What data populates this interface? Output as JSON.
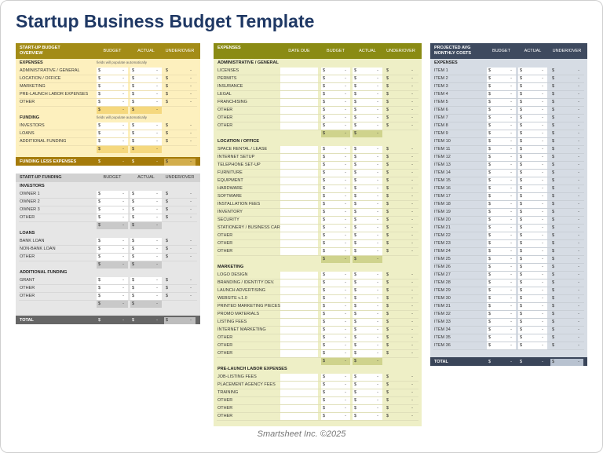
{
  "title": "Startup Business Budget Template",
  "footer": "Smartsheet Inc. ©2025",
  "currency_symbol": "$",
  "empty_value": "-",
  "overview": {
    "header": {
      "label": "START-UP BUDGET OVERVIEW",
      "columns": [
        "BUDGET",
        "ACTUAL",
        "UNDER/OVER"
      ]
    },
    "sections": [
      {
        "heading": "EXPENSES",
        "note": "fields will populate automatically",
        "rows": [
          "ADMINISTRATIVE / GENERAL",
          "LOCATION / OFFICE",
          "MARKETING",
          "PRE-LAUNCH LABOR EXPENSES",
          "OTHER"
        ]
      },
      {
        "heading": "FUNDING",
        "note": "fields will populate automatically",
        "rows": [
          "INVESTORS",
          "LOANS",
          "ADDITIONAL FUNDING"
        ]
      }
    ],
    "total_label": "FUNDING LESS EXPENSES"
  },
  "funding": {
    "header": {
      "label": "START-UP FUNDING",
      "columns": [
        "BUDGET",
        "ACTUAL",
        "UNDER/OVER"
      ]
    },
    "sections": [
      {
        "heading": "INVESTORS",
        "rows": [
          "OWNER 1",
          "OWNER 2",
          "OWNER 3",
          "OTHER"
        ]
      },
      {
        "heading": "LOANS",
        "rows": [
          "BANK LOAN",
          "NON-BANK LOAN",
          "OTHER"
        ]
      },
      {
        "heading": "ADDITIONAL FUNDING",
        "rows": [
          "GRANT",
          "OTHER",
          "OTHER"
        ]
      }
    ],
    "total_label": "TOTAL"
  },
  "expenses": {
    "header": {
      "label": "EXPENSES",
      "columns": [
        "DATE DUE",
        "BUDGET",
        "ACTUAL",
        "UNDER/OVER"
      ]
    },
    "sections": [
      {
        "heading": "ADMINISTRATIVE / GENERAL",
        "rows": [
          "LICENSES",
          "PERMITS",
          "INSURANCE",
          "LEGAL",
          "FRANCHISING",
          "OTHER",
          "OTHER",
          "OTHER"
        ]
      },
      {
        "heading": "LOCATION / OFFICE",
        "rows": [
          "SPACE RENTAL / LEASE",
          "INTERNET SETUP",
          "TELEPHONE SET-UP",
          "FURNITURE",
          "EQUIPMENT",
          "HARDWARE",
          "SOFTWARE",
          "INSTALLATION FEES",
          "INVENTORY",
          "SECURITY",
          "STATIONERY / BUSINESS CARDS",
          "OTHER",
          "OTHER",
          "OTHER"
        ]
      },
      {
        "heading": "MARKETING",
        "rows": [
          "LOGO DESIGN",
          "BRANDING / IDENTITY DEV.",
          "LAUNCH ADVERTISING",
          "WEBSITE v.1.0",
          "PRINTED MARKETING PIECES",
          "PROMO MATERIALS",
          "LISTING FEES",
          "INTERNET MARKETING",
          "OTHER",
          "OTHER",
          "OTHER"
        ]
      },
      {
        "heading": "PRE-LAUNCH LABOR EXPENSES",
        "rows": [
          "JOB-LISTING FEES",
          "PLACEMENT AGENCY FEES",
          "TRAINING",
          "OTHER",
          "OTHER",
          "OTHER"
        ]
      }
    ]
  },
  "monthly": {
    "header": {
      "label": "PROJECTED AVG MONTHLY COSTS",
      "columns": [
        "BUDGET",
        "ACTUAL",
        "UNDER/OVER"
      ]
    },
    "sections": [
      {
        "heading": "EXPENSES",
        "rows": [
          "ITEM 1",
          "ITEM 2",
          "ITEM 3",
          "ITEM 4",
          "ITEM 5",
          "ITEM 6",
          "ITEM 7",
          "ITEM 8",
          "ITEM 9",
          "ITEM 10",
          "ITEM 11",
          "ITEM 12",
          "ITEM 13",
          "ITEM 14",
          "ITEM 15",
          "ITEM 16",
          "ITEM 17",
          "ITEM 18",
          "ITEM 19",
          "ITEM 20",
          "ITEM 21",
          "ITEM 22",
          "ITEM 23",
          "ITEM 24",
          "ITEM 25",
          "ITEM 26",
          "ITEM 27",
          "ITEM 28",
          "ITEM 29",
          "ITEM 30",
          "ITEM 31",
          "ITEM 32",
          "ITEM 33",
          "ITEM 34",
          "ITEM 35",
          "ITEM 36"
        ]
      }
    ],
    "total_label": "TOTAL"
  }
}
